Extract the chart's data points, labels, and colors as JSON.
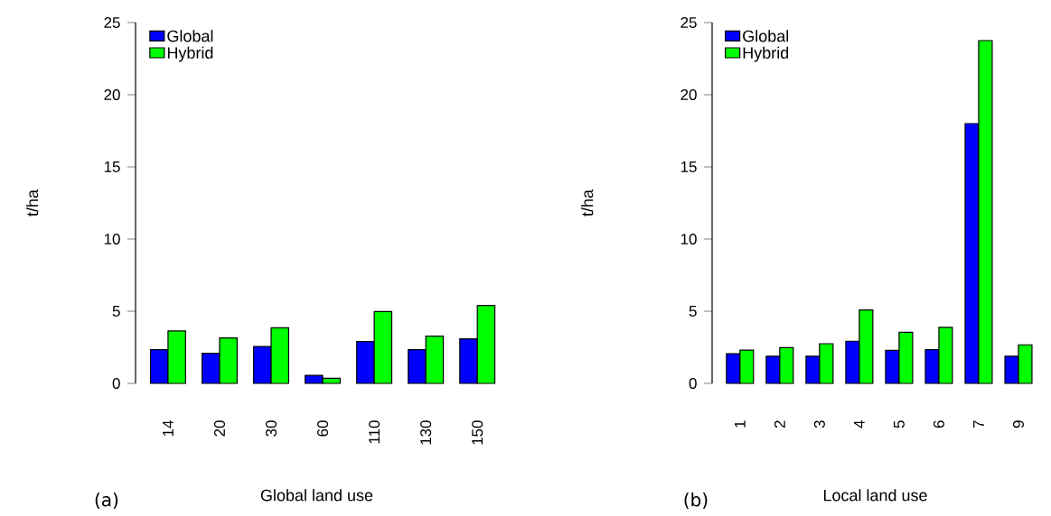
{
  "chart_data": [
    {
      "type": "bar",
      "xlabel": "Global land use",
      "ylabel": "t/ha",
      "categories": [
        "14",
        "20",
        "30",
        "60",
        "110",
        "130",
        "150"
      ],
      "ylim": [
        0,
        25
      ],
      "yticks": [
        0,
        5,
        10,
        15,
        20,
        25
      ],
      "legend": "top left",
      "annotations": [
        "(a)"
      ],
      "series": [
        {
          "name": "Global",
          "color": "#0000ff",
          "values": [
            2.33,
            2.08,
            2.56,
            0.56,
            2.9,
            2.33,
            3.08
          ]
        },
        {
          "name": "Hybrid",
          "color": "#00ff00",
          "values": [
            3.63,
            3.15,
            3.85,
            0.35,
            4.98,
            3.27,
            5.4
          ]
        }
      ]
    },
    {
      "type": "bar",
      "xlabel": "Local land use",
      "ylabel": "t/ha",
      "categories": [
        "1",
        "2",
        "3",
        "4",
        "5",
        "6",
        "7",
        "9"
      ],
      "ylim": [
        0,
        25
      ],
      "yticks": [
        0,
        5,
        10,
        15,
        20,
        25
      ],
      "legend": "top left",
      "annotations": [
        "(b)"
      ],
      "series": [
        {
          "name": "Global",
          "color": "#0000ff",
          "values": [
            2.06,
            1.88,
            1.88,
            2.92,
            2.29,
            2.33,
            18.0,
            1.88
          ]
        },
        {
          "name": "Hybrid",
          "color": "#00ff00",
          "values": [
            2.31,
            2.48,
            2.75,
            5.08,
            3.54,
            3.88,
            23.75,
            2.67
          ]
        }
      ]
    }
  ]
}
